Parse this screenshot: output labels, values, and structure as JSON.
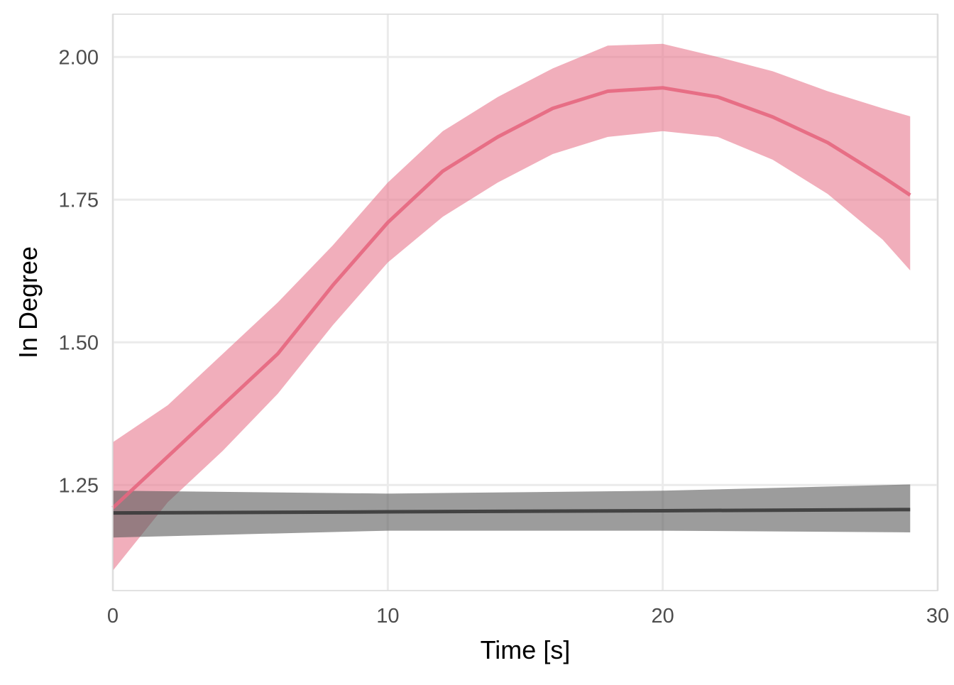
{
  "chart_data": {
    "type": "line",
    "title": "",
    "xlabel": "Time [s]",
    "ylabel": "In Degree",
    "xlim": [
      0,
      30
    ],
    "ylim": [
      1.065,
      2.075
    ],
    "x_ticks": [
      0,
      10,
      20,
      30
    ],
    "x_tick_labels": [
      "0",
      "10",
      "20",
      "30"
    ],
    "y_ticks": [
      1.25,
      1.5,
      1.75,
      2.0
    ],
    "y_tick_labels": [
      "1.25",
      "1.50",
      "1.75",
      "2.00"
    ],
    "grid": true,
    "series": [
      {
        "name": "red",
        "line_color": "#e5677f",
        "ribbon_color": "#e8788d",
        "x": [
          0,
          2,
          4,
          6,
          8,
          10,
          12,
          14,
          16,
          18,
          20,
          22,
          24,
          26,
          28,
          29
        ],
        "y": [
          1.21,
          1.3,
          1.39,
          1.48,
          1.6,
          1.71,
          1.8,
          1.86,
          1.91,
          1.94,
          1.946,
          1.93,
          1.895,
          1.85,
          1.79,
          1.758
        ],
        "upper": [
          1.325,
          1.39,
          1.48,
          1.57,
          1.67,
          1.78,
          1.87,
          1.93,
          1.98,
          2.02,
          2.023,
          2.0,
          1.975,
          1.94,
          1.91,
          1.896
        ],
        "lower": [
          1.1,
          1.22,
          1.31,
          1.41,
          1.53,
          1.64,
          1.72,
          1.78,
          1.83,
          1.86,
          1.87,
          1.86,
          1.82,
          1.76,
          1.68,
          1.626
        ]
      },
      {
        "name": "black",
        "line_color": "#3a3a3a",
        "ribbon_color": "#5a5a5a",
        "x": [
          0,
          10,
          20,
          29
        ],
        "y": [
          1.201,
          1.203,
          1.205,
          1.207
        ],
        "upper": [
          1.24,
          1.235,
          1.24,
          1.251
        ],
        "lower": [
          1.158,
          1.17,
          1.17,
          1.167
        ]
      }
    ]
  }
}
